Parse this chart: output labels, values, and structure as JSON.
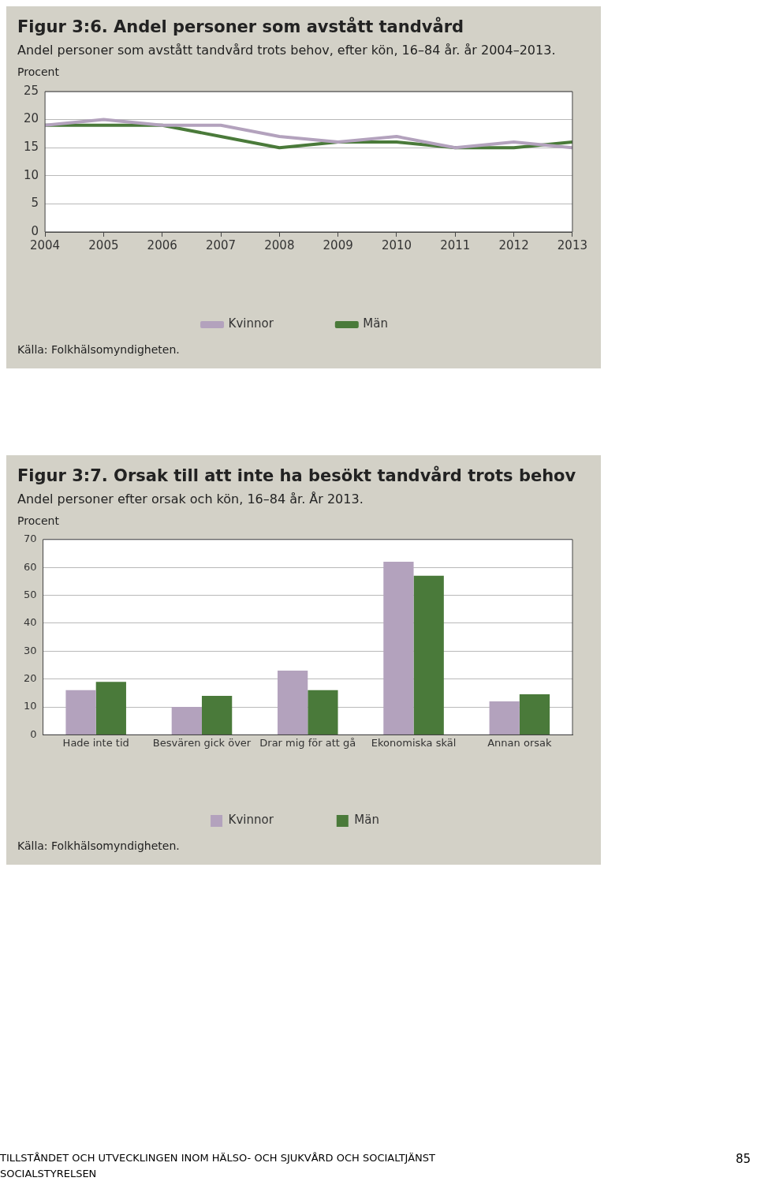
{
  "chart_data": [
    {
      "type": "line",
      "title": "Figur 3:6. Andel personer som avstått tandvård",
      "subtitle": "Andel personer som avstått tandvård trots behov, efter kön, 16–84 år. år 2004–2013.",
      "ylabel": "Procent",
      "x": [
        2004,
        2005,
        2006,
        2007,
        2008,
        2009,
        2010,
        2011,
        2012,
        2013
      ],
      "xlim": [
        2004,
        2013
      ],
      "xticks": [
        2004,
        2005,
        2006,
        2007,
        2008,
        2009,
        2010,
        2011,
        2012,
        2013
      ],
      "ylim": [
        0,
        25
      ],
      "yticks": [
        0,
        5,
        10,
        15,
        20,
        25
      ],
      "grid": "y",
      "legend": "bottom",
      "marker": "none",
      "line_style": "solid",
      "series": [
        {
          "name": "Kvinnor",
          "color": "#b3a2bd",
          "values": [
            19,
            20,
            19,
            19,
            17,
            16,
            17,
            15,
            16,
            15
          ]
        },
        {
          "name": "Män",
          "color": "#4a7a3a",
          "values": [
            19,
            19,
            19,
            17,
            15,
            16,
            16,
            15,
            15,
            16
          ]
        }
      ],
      "annotations": [
        "Källa: Folkhälsomyndigheten."
      ]
    },
    {
      "type": "bar",
      "title": "Figur 3:7. Orsak till att inte ha besökt tandvård trots behov",
      "subtitle": "Andel personer efter orsak och kön, 16–84 år. År 2013.",
      "ylabel": "Procent",
      "categories": [
        "Hade inte tid",
        "Besvären gick över",
        "Drar mig för att gå",
        "Ekonomiska skäl",
        "Annan orsak"
      ],
      "ylim": [
        0,
        70
      ],
      "yticks": [
        0,
        10,
        20,
        30,
        40,
        50,
        60,
        70
      ],
      "grid": "y",
      "legend": "bottom",
      "series": [
        {
          "name": "Kvinnor",
          "color": "#b3a2bd",
          "values": [
            16,
            10,
            23,
            62,
            12
          ]
        },
        {
          "name": "Män",
          "color": "#4a7a3a",
          "values": [
            19,
            14,
            16,
            57,
            14.5
          ]
        }
      ],
      "annotations": [
        "Källa: Folkhälsomyndigheten.",
        "TILLSTÅNDET OCH UTVECKLINGEN INOM HÄLSO- OCH SJUKVÅRD OCH SOCIALTJÄNST",
        "SOCIALSTYRELSEN",
        "85"
      ]
    }
  ]
}
